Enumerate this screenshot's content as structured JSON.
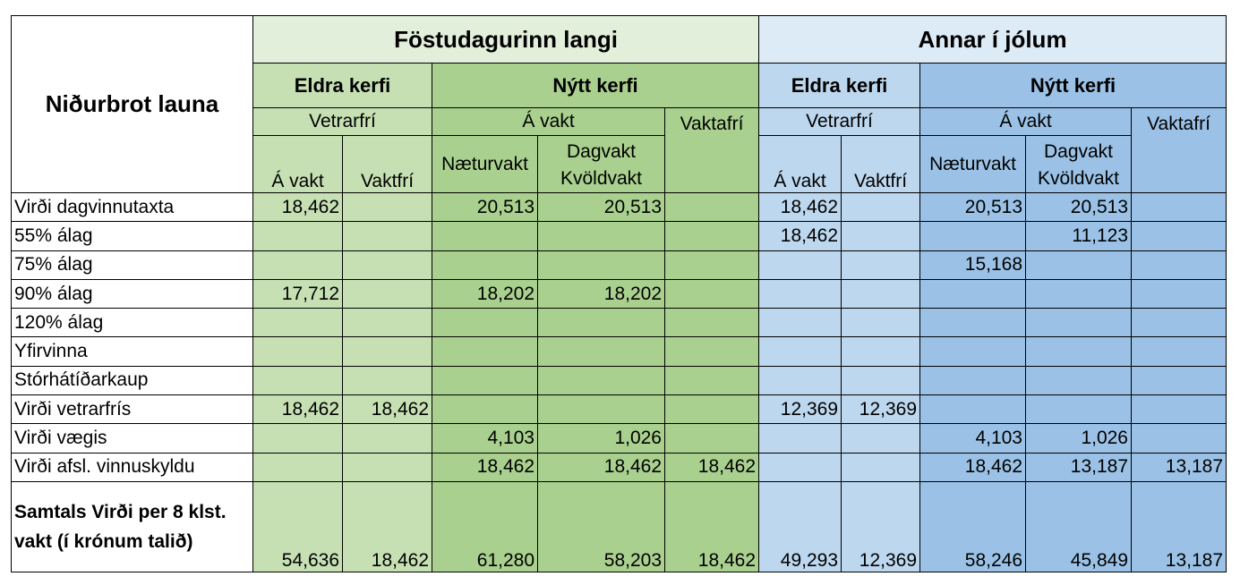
{
  "table": {
    "title": "Niðurbrot launa",
    "groups": [
      "Föstudagurinn langi",
      "Annar í jólum"
    ],
    "systems": [
      "Eldra kerfi",
      "Nýtt kerfi",
      "Eldra kerfi",
      "Nýtt kerfi"
    ],
    "subheaders": [
      "Vetrarfrí",
      "Á vakt",
      "Vetrarfrí",
      "Á vakt"
    ],
    "columns": [
      "Á vakt",
      "Vaktfrí",
      "Næturvakt",
      "Dagvakt Kvöldvakt",
      "Vaktafrí",
      "Á vakt",
      "Vaktfrí",
      "Næturvakt",
      "Dagvakt Kvöldvakt",
      "Vaktafrí"
    ],
    "rows": [
      {
        "label": "Virði dagvinnutaxta",
        "values": [
          "18,462",
          "",
          "20,513",
          "20,513",
          "",
          "18,462",
          "",
          "20,513",
          "20,513",
          ""
        ]
      },
      {
        "label": "55% álag",
        "values": [
          "",
          "",
          "",
          "",
          "",
          "18,462",
          "",
          "",
          "11,123",
          ""
        ]
      },
      {
        "label": "75% álag",
        "values": [
          "",
          "",
          "",
          "",
          "",
          "",
          "",
          "15,168",
          "",
          ""
        ]
      },
      {
        "label": "90% álag",
        "values": [
          "17,712",
          "",
          "18,202",
          "18,202",
          "",
          "",
          "",
          "",
          "",
          ""
        ]
      },
      {
        "label": "120% álag",
        "values": [
          "",
          "",
          "",
          "",
          "",
          "",
          "",
          "",
          "",
          ""
        ]
      },
      {
        "label": "Yfirvinna",
        "values": [
          "",
          "",
          "",
          "",
          "",
          "",
          "",
          "",
          "",
          ""
        ]
      },
      {
        "label": "Stórhátíðarkaup",
        "values": [
          "",
          "",
          "",
          "",
          "",
          "",
          "",
          "",
          "",
          ""
        ]
      },
      {
        "label": "Virði vetrarfrís",
        "values": [
          "18,462",
          "18,462",
          "",
          "",
          "",
          "12,369",
          "12,369",
          "",
          "",
          ""
        ]
      },
      {
        "label": "Virði vægis",
        "values": [
          "",
          "",
          "4,103",
          "1,026",
          "",
          "",
          "",
          "4,103",
          "1,026",
          ""
        ]
      },
      {
        "label": "Virði afsl. vinnuskyldu",
        "values": [
          "",
          "",
          "18,462",
          "18,462",
          "18,462",
          "",
          "",
          "18,462",
          "13,187",
          "13,187"
        ]
      }
    ],
    "total": {
      "label": "Samtals Virði per 8 klst. vakt (í krónum talið)",
      "values": [
        "54,636",
        "18,462",
        "61,280",
        "58,203",
        "18,462",
        "49,293",
        "12,369",
        "58,246",
        "45,849",
        "13,187"
      ]
    },
    "colors": {
      "green_light": "#e2efda",
      "green_mid": "#c6e0b4",
      "green_dark": "#a9d08e",
      "blue_light": "#ddebf7",
      "blue_mid": "#bdd7ee",
      "blue_dark": "#9bc2e6"
    }
  }
}
